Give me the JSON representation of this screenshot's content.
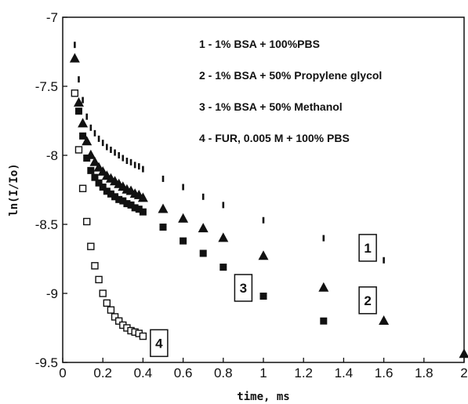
{
  "chart_data": {
    "type": "scatter",
    "title": "",
    "xlabel": "time, ms",
    "ylabel": "ln(I/Io)",
    "xlim": [
      0,
      2
    ],
    "ylim": [
      -9.5,
      -7
    ],
    "grid": false,
    "xticks": [
      "0",
      "0.2",
      "0.4",
      "0.6",
      "0.8",
      "1",
      "1.2",
      "1.4",
      "1.6",
      "1.8",
      "2"
    ],
    "yticks": [
      "-7",
      "-7.5",
      "-8",
      "-8.5",
      "-9",
      "-9.5"
    ],
    "legend": [
      "1 - 1% BSA + 100%PBS",
      "2 - 1% BSA + 50% Propylene glycol",
      "3 - 1% BSA + 50% Methanol",
      "4 - FUR, 0.005 M + 100% PBS"
    ],
    "curve_labels": [
      {
        "text": "1",
        "x": 1.52,
        "y": -8.67
      },
      {
        "text": "2",
        "x": 1.52,
        "y": -9.05
      },
      {
        "text": "3",
        "x": 0.9,
        "y": -8.96
      },
      {
        "text": "4",
        "x": 0.48,
        "y": -9.36
      }
    ],
    "series": [
      {
        "name": "1",
        "marker": "dash",
        "x": [
          0.06,
          0.08,
          0.1,
          0.12,
          0.14,
          0.16,
          0.18,
          0.2,
          0.22,
          0.24,
          0.26,
          0.28,
          0.3,
          0.32,
          0.34,
          0.36,
          0.38,
          0.4,
          0.5,
          0.6,
          0.7,
          0.8,
          1.0,
          1.3,
          1.6
        ],
        "y": [
          -7.2,
          -7.45,
          -7.6,
          -7.72,
          -7.8,
          -7.84,
          -7.88,
          -7.91,
          -7.94,
          -7.96,
          -7.98,
          -8.0,
          -8.02,
          -8.04,
          -8.05,
          -8.07,
          -8.08,
          -8.1,
          -8.17,
          -8.23,
          -8.3,
          -8.36,
          -8.47,
          -8.6,
          -8.76
        ]
      },
      {
        "name": "2",
        "marker": "triangle",
        "x": [
          0.06,
          0.08,
          0.1,
          0.12,
          0.14,
          0.16,
          0.18,
          0.2,
          0.22,
          0.24,
          0.26,
          0.28,
          0.3,
          0.32,
          0.34,
          0.36,
          0.38,
          0.4,
          0.5,
          0.6,
          0.7,
          0.8,
          1.0,
          1.3,
          1.6,
          2.0
        ],
        "y": [
          -7.3,
          -7.62,
          -7.77,
          -7.9,
          -8.0,
          -8.05,
          -8.09,
          -8.12,
          -8.15,
          -8.17,
          -8.19,
          -8.21,
          -8.23,
          -8.25,
          -8.26,
          -8.28,
          -8.29,
          -8.31,
          -8.39,
          -8.46,
          -8.53,
          -8.6,
          -8.73,
          -8.96,
          -9.2,
          -9.44
        ]
      },
      {
        "name": "3",
        "marker": "filled-square",
        "x": [
          0.08,
          0.1,
          0.12,
          0.14,
          0.16,
          0.18,
          0.2,
          0.22,
          0.24,
          0.26,
          0.28,
          0.3,
          0.32,
          0.34,
          0.36,
          0.38,
          0.4,
          0.5,
          0.6,
          0.7,
          0.8,
          1.0,
          1.3
        ],
        "y": [
          -7.68,
          -7.86,
          -8.02,
          -8.11,
          -8.16,
          -8.2,
          -8.23,
          -8.26,
          -8.28,
          -8.3,
          -8.32,
          -8.33,
          -8.35,
          -8.36,
          -8.38,
          -8.39,
          -8.41,
          -8.52,
          -8.62,
          -8.71,
          -8.81,
          -9.02,
          -9.2
        ]
      },
      {
        "name": "4",
        "marker": "open-square",
        "x": [
          0.06,
          0.08,
          0.1,
          0.12,
          0.14,
          0.16,
          0.18,
          0.2,
          0.22,
          0.24,
          0.26,
          0.28,
          0.3,
          0.32,
          0.34,
          0.36,
          0.38,
          0.4
        ],
        "y": [
          -7.55,
          -7.96,
          -8.24,
          -8.48,
          -8.66,
          -8.8,
          -8.9,
          -9.0,
          -9.07,
          -9.12,
          -9.17,
          -9.2,
          -9.23,
          -9.25,
          -9.27,
          -9.28,
          -9.29,
          -9.31
        ]
      }
    ]
  }
}
